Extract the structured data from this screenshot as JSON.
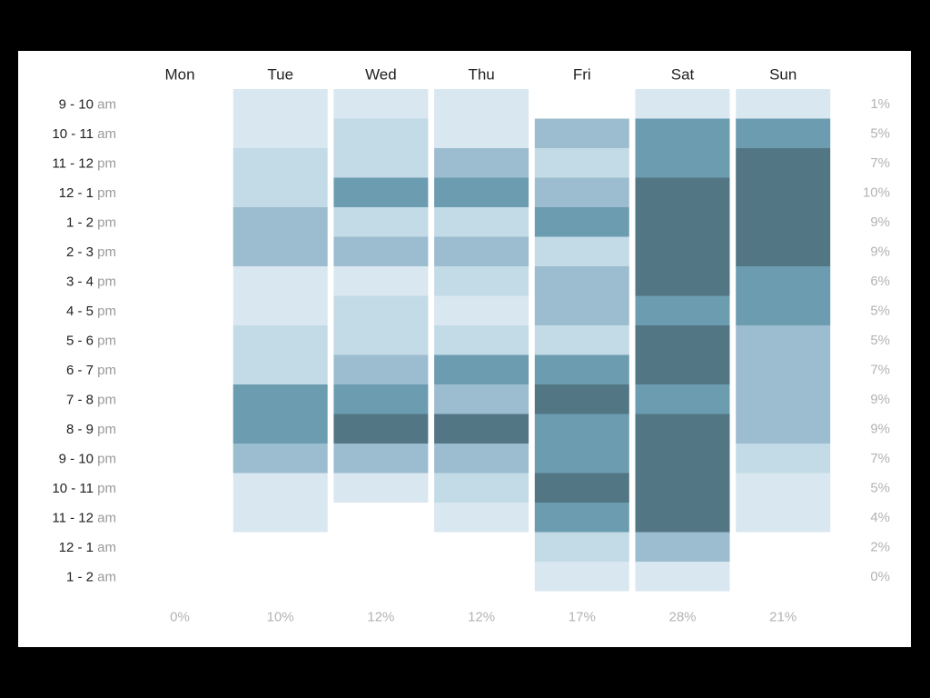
{
  "chart_data": {
    "type": "heatmap",
    "days": [
      "Mon",
      "Tue",
      "Wed",
      "Thu",
      "Fri",
      "Sat",
      "Sun"
    ],
    "time_slots": [
      {
        "range": "9 - 10",
        "suffix": "am"
      },
      {
        "range": "10 - 11",
        "suffix": "am"
      },
      {
        "range": "11 - 12",
        "suffix": "pm"
      },
      {
        "range": "12 - 1",
        "suffix": "pm"
      },
      {
        "range": "1 - 2",
        "suffix": "pm"
      },
      {
        "range": "2 - 3",
        "suffix": "pm"
      },
      {
        "range": "3 - 4",
        "suffix": "pm"
      },
      {
        "range": "4 - 5",
        "suffix": "pm"
      },
      {
        "range": "5 - 6",
        "suffix": "pm"
      },
      {
        "range": "6 - 7",
        "suffix": "pm"
      },
      {
        "range": "7 - 8",
        "suffix": "pm"
      },
      {
        "range": "8 - 9",
        "suffix": "pm"
      },
      {
        "range": "9 - 10",
        "suffix": "pm"
      },
      {
        "range": "10 - 11",
        "suffix": "pm"
      },
      {
        "range": "11 - 12",
        "suffix": "am"
      },
      {
        "range": "12 - 1",
        "suffix": "am"
      },
      {
        "range": "1 - 2",
        "suffix": "am"
      }
    ],
    "row_totals": [
      "1%",
      "5%",
      "7%",
      "10%",
      "9%",
      "9%",
      "6%",
      "5%",
      "5%",
      "7%",
      "9%",
      "9%",
      "7%",
      "5%",
      "4%",
      "2%",
      "0%"
    ],
    "day_totals": [
      "0%",
      "10%",
      "12%",
      "12%",
      "17%",
      "28%",
      "21%"
    ],
    "intensity_scale": "0 = no data, 1 = lightest, 5 = darkest",
    "colors": [
      "#ffffff",
      "#d9e7f0",
      "#c2dbe6",
      "#9cbccf",
      "#6c9cb0",
      "#537685"
    ],
    "values": [
      [
        0,
        1,
        1,
        1,
        0,
        1,
        1
      ],
      [
        0,
        1,
        2,
        1,
        3,
        4,
        4
      ],
      [
        0,
        2,
        2,
        3,
        2,
        4,
        5
      ],
      [
        0,
        2,
        4,
        4,
        3,
        5,
        5
      ],
      [
        0,
        3,
        2,
        2,
        4,
        5,
        5
      ],
      [
        0,
        3,
        3,
        3,
        2,
        5,
        5
      ],
      [
        0,
        1,
        1,
        2,
        3,
        5,
        4
      ],
      [
        0,
        1,
        2,
        1,
        3,
        4,
        4
      ],
      [
        0,
        2,
        2,
        2,
        2,
        5,
        3
      ],
      [
        0,
        2,
        3,
        4,
        4,
        5,
        3
      ],
      [
        0,
        4,
        4,
        3,
        5,
        4,
        3
      ],
      [
        0,
        4,
        5,
        5,
        4,
        5,
        3
      ],
      [
        0,
        3,
        3,
        3,
        4,
        5,
        2
      ],
      [
        0,
        1,
        1,
        2,
        5,
        5,
        1
      ],
      [
        0,
        1,
        0,
        1,
        4,
        5,
        1
      ],
      [
        0,
        0,
        0,
        0,
        2,
        3,
        0
      ],
      [
        0,
        0,
        0,
        0,
        1,
        1,
        0
      ]
    ]
  }
}
